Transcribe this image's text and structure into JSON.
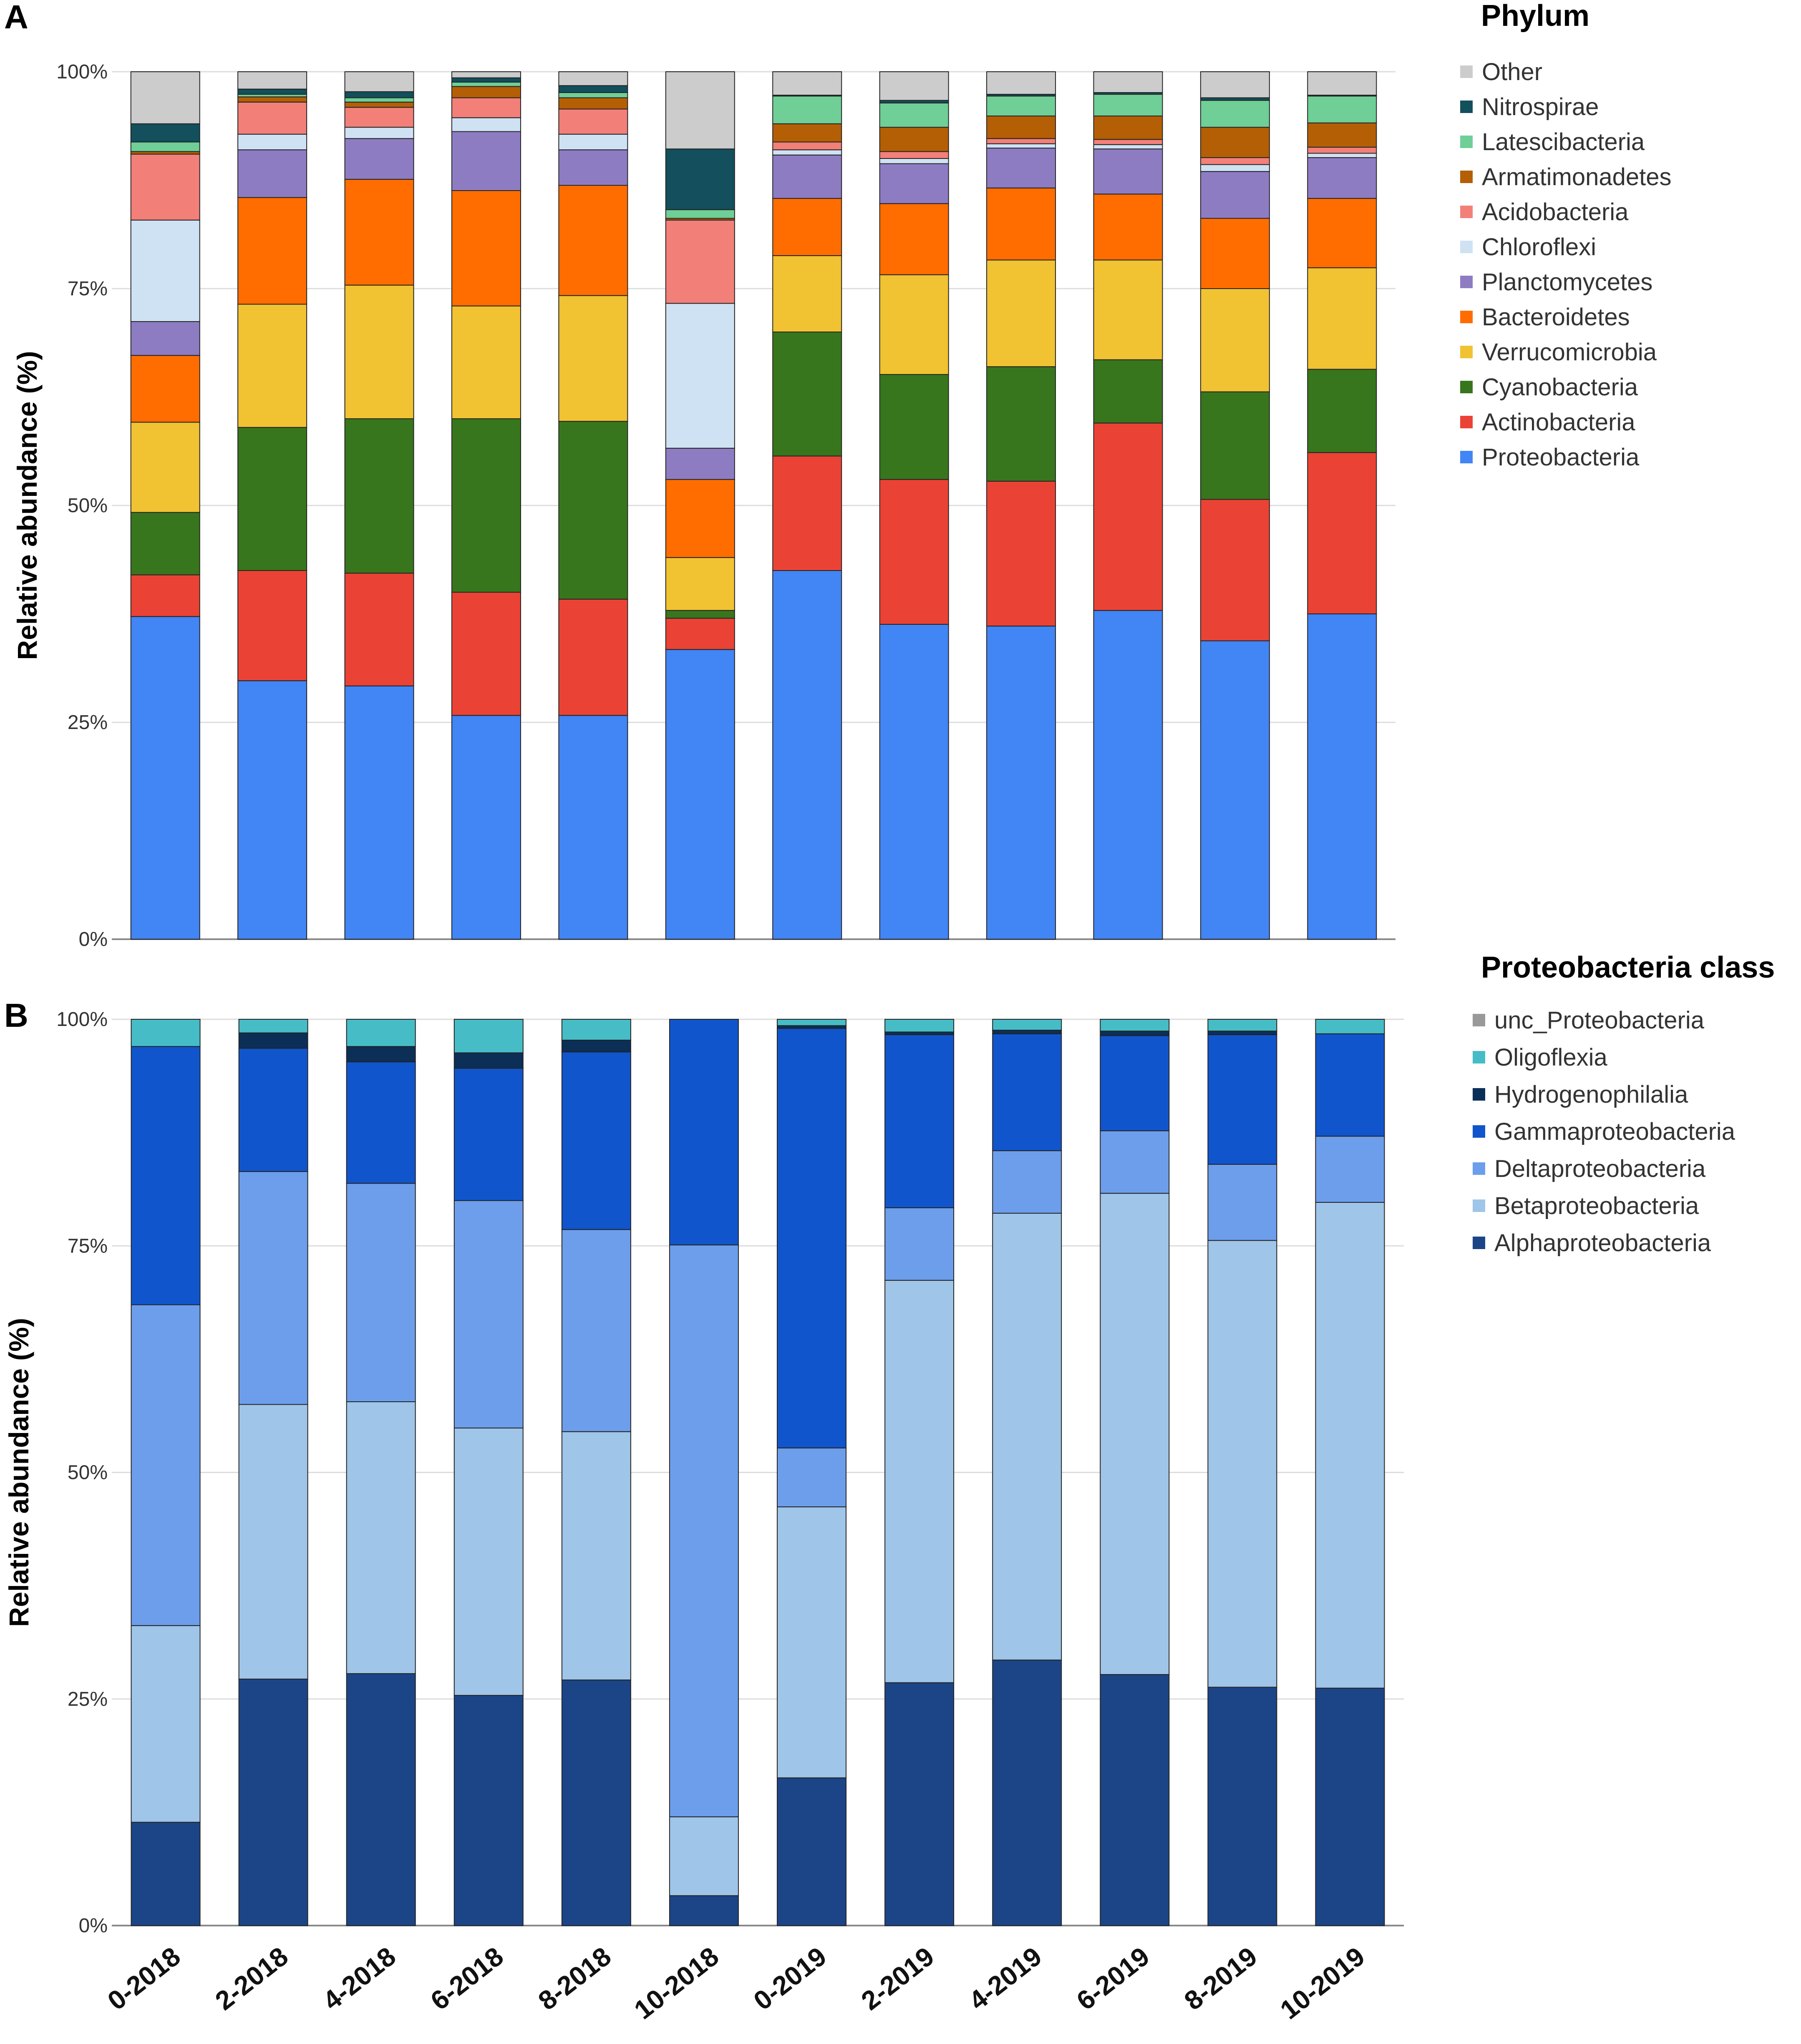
{
  "chart_data": [
    {
      "panel": "A",
      "type": "bar",
      "stacked": true,
      "title": "",
      "xlabel": "",
      "ylabel": "Relative abundance (%)",
      "ylim": [
        0,
        100
      ],
      "yticks": [
        "0%",
        "25%",
        "50%",
        "75%",
        "100%"
      ],
      "legend_title": "Phylum",
      "legend_position": "right",
      "categories": [
        "0-2018",
        "2-2018",
        "4-2018",
        "6-2018",
        "8-2018",
        "10-2018",
        "0-2019",
        "2-2019",
        "4-2019",
        "6-2019",
        "8-2019",
        "10-2019"
      ],
      "series": [
        {
          "name": "Proteobacteria",
          "color": "#4285f4",
          "values": [
            37.2,
            29.8,
            29.2,
            25.8,
            25.8,
            33.4,
            42.5,
            36.3,
            36.1,
            37.9,
            34.4,
            37.5
          ]
        },
        {
          "name": "Actinobacteria",
          "color": "#ea4335",
          "values": [
            4.8,
            12.7,
            13.0,
            14.2,
            13.4,
            3.6,
            13.2,
            16.7,
            16.7,
            21.6,
            16.3,
            18.6
          ]
        },
        {
          "name": "Cyanobacteria",
          "color": "#38761d",
          "values": [
            7.2,
            16.5,
            17.8,
            20.0,
            20.5,
            0.9,
            14.3,
            12.1,
            13.2,
            7.3,
            12.4,
            9.6
          ]
        },
        {
          "name": "Verrucomicrobia",
          "color": "#f1c232",
          "values": [
            10.4,
            14.2,
            15.4,
            13.0,
            14.5,
            6.1,
            8.8,
            11.5,
            12.3,
            11.5,
            11.9,
            11.7
          ]
        },
        {
          "name": "Bacteroidetes",
          "color": "#ff6d01",
          "values": [
            7.7,
            12.3,
            12.2,
            13.3,
            12.7,
            9.0,
            6.6,
            8.2,
            8.3,
            7.6,
            8.1,
            8.0
          ]
        },
        {
          "name": "Planctomycetes",
          "color": "#8e7cc3",
          "values": [
            3.9,
            5.5,
            4.7,
            6.8,
            4.1,
            3.6,
            5.0,
            4.6,
            4.6,
            5.2,
            5.4,
            4.7
          ]
        },
        {
          "name": "Chloroflexi",
          "color": "#cfe2f3",
          "values": [
            11.7,
            1.8,
            1.3,
            1.6,
            1.8,
            16.7,
            0.6,
            0.6,
            0.5,
            0.5,
            0.8,
            0.5
          ]
        },
        {
          "name": "Acidobacteria",
          "color": "#f28079",
          "values": [
            7.6,
            3.7,
            2.3,
            2.3,
            2.9,
            9.6,
            0.9,
            0.8,
            0.6,
            0.6,
            0.8,
            0.7
          ]
        },
        {
          "name": "Armatimonadetes",
          "color": "#b45f06",
          "values": [
            0.3,
            0.6,
            0.6,
            1.3,
            1.3,
            0.2,
            2.1,
            2.8,
            2.6,
            2.7,
            3.5,
            2.8
          ]
        },
        {
          "name": "Latescibacteria",
          "color": "#6fcf97",
          "values": [
            1.1,
            0.3,
            0.5,
            0.5,
            0.6,
            1.0,
            3.2,
            2.8,
            2.3,
            2.5,
            3.1,
            3.1
          ]
        },
        {
          "name": "Nitrospirae",
          "color": "#134f5c",
          "values": [
            2.1,
            0.6,
            0.7,
            0.5,
            0.8,
            7.0,
            0.1,
            0.3,
            0.2,
            0.2,
            0.3,
            0.1
          ]
        },
        {
          "name": "Other",
          "color": "#cccccc",
          "values": [
            6.0,
            2.0,
            2.3,
            0.7,
            1.6,
            8.9,
            2.7,
            3.3,
            2.6,
            2.4,
            3.0,
            2.7
          ]
        }
      ]
    },
    {
      "panel": "B",
      "type": "bar",
      "stacked": true,
      "title": "",
      "xlabel": "",
      "ylabel": "Relative abundance (%)",
      "ylim": [
        0,
        100
      ],
      "yticks": [
        "0%",
        "25%",
        "50%",
        "75%",
        "100%"
      ],
      "legend_title": "Proteobacteria class",
      "legend_position": "right",
      "categories": [
        "0-2018",
        "2-2018",
        "4-2018",
        "6-2018",
        "8-2018",
        "10-2018",
        "0-2019",
        "2-2019",
        "4-2019",
        "6-2019",
        "8-2019",
        "10-2019"
      ],
      "series": [
        {
          "name": "Alphaproteobacteria",
          "color": "#1c4587",
          "values": [
            11.4,
            27.2,
            27.8,
            25.4,
            27.1,
            3.3,
            16.3,
            26.8,
            29.3,
            27.7,
            26.3,
            26.2
          ]
        },
        {
          "name": "Betaproteobacteria",
          "color": "#9fc5e8",
          "values": [
            21.7,
            30.3,
            30.0,
            29.5,
            27.4,
            8.7,
            29.9,
            44.4,
            49.3,
            53.1,
            49.3,
            53.6
          ]
        },
        {
          "name": "Deltaproteobacteria",
          "color": "#6d9eeb",
          "values": [
            35.4,
            25.7,
            24.1,
            25.1,
            22.3,
            63.1,
            6.5,
            8.0,
            6.9,
            6.9,
            8.4,
            7.3
          ]
        },
        {
          "name": "Gammaproteobacteria",
          "color": "#1155cc",
          "values": [
            28.5,
            13.6,
            13.4,
            14.6,
            19.6,
            24.9,
            46.3,
            19.1,
            12.9,
            10.5,
            14.3,
            11.3
          ]
        },
        {
          "name": "Hydrogenophilalia",
          "color": "#0b2f57",
          "values": [
            0.0,
            1.7,
            1.7,
            1.7,
            1.3,
            0.0,
            0.3,
            0.3,
            0.4,
            0.5,
            0.4,
            0.0
          ]
        },
        {
          "name": "Oligoflexia",
          "color": "#46bdc6",
          "values": [
            3.0,
            1.5,
            3.0,
            3.7,
            2.3,
            0.0,
            0.7,
            1.4,
            1.2,
            1.3,
            1.3,
            1.6
          ]
        },
        {
          "name": "unc_Proteobacteria",
          "color": "#999999",
          "values": [
            0.0,
            0.0,
            0.0,
            0.0,
            0.0,
            0.0,
            0.0,
            0.0,
            0.0,
            0.0,
            0.0,
            0.0
          ]
        }
      ]
    }
  ]
}
